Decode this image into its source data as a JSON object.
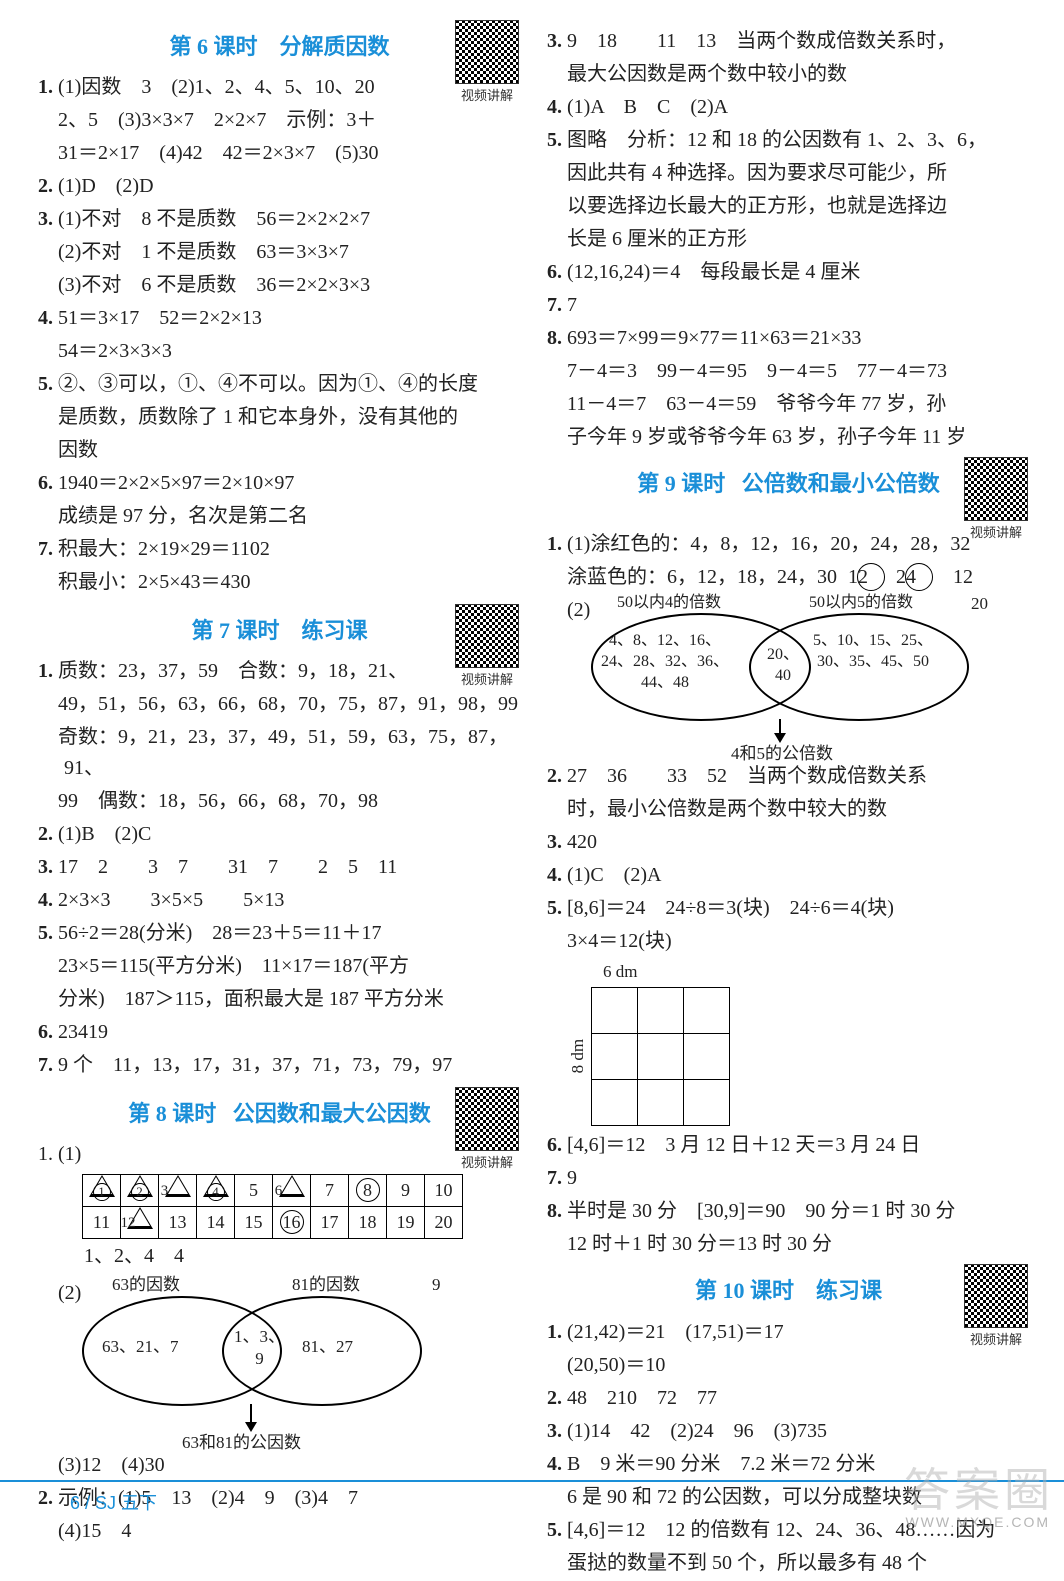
{
  "footer": "6  / SJ 五下",
  "watermark": "答案圈",
  "watermark_sub": "WWW.MXQE.COM",
  "qr_label": "视频讲解",
  "sections": {
    "s6": {
      "title": "第 6 课时    分解质因数",
      "lines": [
        "1. (1)因数　3　(2)1、2、4、5、10、20",
        "　2、5　(3)3×3×7　2×2×7　示例：3＋",
        "　31＝2×17　(4)42　42＝2×3×7　(5)30",
        "2. (1)D　(2)D",
        "3. (1)不对　8 不是质数　56＝2×2×2×7",
        "　(2)不对　1 不是质数　63＝3×3×7",
        "　(3)不对　6 不是质数　36＝2×2×3×3",
        "4. 51＝3×17　52＝2×2×13",
        "　54＝2×3×3×3",
        "5. ②、③可以，①、④不可以。因为①、④的长度",
        "　是质数，质数除了 1 和它本身外，没有其他的",
        "　因数",
        "6. 1940＝2×2×5×97＝2×10×97",
        "　成绩是 97 分，名次是第二名",
        "7. 积最大：2×19×29＝1102",
        "　积最小：2×5×43＝430"
      ]
    },
    "s7": {
      "title": "第 7 课时    练习课",
      "lines": [
        "1. 质数：23，37，59　合数：9，18，21、",
        "　49，51，56，63，66，68，70，75，87，91，98，99",
        "　奇数：9，21，23，37，49，51，59，63，75，87，91、",
        "　99　偶数：18，56，66，68，70，98",
        "2. (1)B　(2)C",
        "3. 17　2　　3　7　　31　7　　2　5　11",
        "4. 2×3×3　　3×5×5　　5×13",
        "5. 56÷2＝28(分米)　28＝23＋5＝11＋17",
        "　23×5＝115(平方分米)　11×17＝187(平方",
        "　分米)　187＞115，面积最大是 187 平方分米",
        "6. 23419",
        "7. 9 个　11，13，17，31，37，71，73，79，97"
      ]
    },
    "s8": {
      "title": "第 8 课时   公因数和最大公因数",
      "pre_table_label": "1. (1)",
      "table": {
        "row1": [
          {
            "n": "1",
            "circle": true,
            "tri": true
          },
          {
            "n": "2",
            "circle": true,
            "tri": true
          },
          {
            "n": "3",
            "circle": false,
            "tri": true
          },
          {
            "n": "4",
            "circle": true,
            "tri": true
          },
          {
            "n": "5",
            "circle": false,
            "tri": false
          },
          {
            "n": "6",
            "circle": false,
            "tri": true
          },
          {
            "n": "7",
            "circle": false,
            "tri": false
          },
          {
            "n": "8",
            "circle": true,
            "tri": false
          },
          {
            "n": "9",
            "circle": false,
            "tri": false
          },
          {
            "n": "10",
            "circle": false,
            "tri": false
          }
        ],
        "row2": [
          {
            "n": "11",
            "circle": false,
            "tri": false
          },
          {
            "n": "12",
            "circle": false,
            "tri": true
          },
          {
            "n": "13",
            "circle": false,
            "tri": false
          },
          {
            "n": "14",
            "circle": false,
            "tri": false
          },
          {
            "n": "15",
            "circle": false,
            "tri": false
          },
          {
            "n": "16",
            "circle": true,
            "tri": false
          },
          {
            "n": "17",
            "circle": false,
            "tri": false
          },
          {
            "n": "18",
            "circle": false,
            "tri": false
          },
          {
            "n": "19",
            "circle": false,
            "tri": false
          },
          {
            "n": "20",
            "circle": false,
            "tri": false
          }
        ]
      },
      "after_table": "　1、2、4　4",
      "venn": {
        "left_label": "63的因数",
        "right_label": "81的因数",
        "outside_right": "9",
        "left_text": "63、21、7",
        "mid_text": "1、3、\n9",
        "right_text": "81、27",
        "caption": "63和81的公因数"
      },
      "tail": [
        "　(3)12　(4)30",
        "2. 示例：(1)5　13　(2)4　9　(3)4　7",
        "　(4)15　4"
      ]
    },
    "s8r": {
      "lines": [
        "3. 9　18　　11　13　当两个数成倍数关系时，",
        "　最大公因数是两个数中较小的数",
        "4. (1)A　B　C　(2)A",
        "5. 图略　分析：12 和 18 的公因数有 1、2、3、6，",
        "　因此共有 4 种选择。因为要求尽可能少，所",
        "　以要选择边长最大的正方形，也就是选择边",
        "　长是 6 厘米的正方形",
        "6. (12,16,24)＝4　每段最长是 4 厘米",
        "7. 7",
        "8. 693＝7×99＝9×77＝11×63＝21×33",
        "　7－4＝3　99－4＝95　9－4＝5　77－4＝73",
        "　11－4＝7　63－4＝59　爷爷今年 77 岁，孙",
        "　子今年 9 岁或爷爷今年 63 岁，孙子今年 11 岁"
      ]
    },
    "s9": {
      "title": "第 9 课时   公倍数和最小公倍数",
      "lines_a": [
        "1. (1)涂红色的：4，8，12，16，20，24，28，32",
        "　涂蓝色的：6，12，18，24，30　⑫　㉔　12"
      ],
      "venn": {
        "header_left": "50以内4的倍数",
        "header_right": "50以内5的倍数",
        "right_margin": "20",
        "left_text": "4、8、12、16、\n24、28、32、36、\n44、48",
        "mid_text": "20、\n40",
        "right_text": "5、10、15、25、\n30、35、45、50",
        "caption": "4和5的公倍数"
      },
      "lines_b": [
        "2. 27　36　　33　52　当两个数成倍数关系",
        "　时，最小公倍数是两个数中较大的数",
        "3. 420",
        "4. (1)C　(2)A",
        "5. [8,6]＝24　24÷8＝3(块)　24÷6＝4(块)",
        "　3×4＝12(块)"
      ],
      "grid": {
        "top": "6 dm",
        "left": "8 dm"
      },
      "lines_c": [
        "6. [4,6]＝12　3 月 12 日＋12 天＝3 月 24 日",
        "7. 9",
        "8. 半时是 30 分　[30,9]＝90　90 分＝1 时 30 分",
        "　12 时＋1 时 30 分＝13 时 30 分"
      ]
    },
    "s10": {
      "title": "第 10 课时    练习课",
      "lines": [
        "1. (21,42)＝21　(17,51)＝17",
        "　(20,50)＝10",
        "2. 48　210　72　77",
        "3. (1)14　42　(2)24　96　(3)735",
        "4. B　9 米＝90 分米　7.2 米＝72 分米",
        "　6 是 90 和 72 的公因数，可以分成整块数",
        "5. [4,6]＝12　12 的倍数有 12、24、36、48……因为",
        "　蛋挞的数量不到 50 个，所以最多有 48 个"
      ]
    }
  }
}
